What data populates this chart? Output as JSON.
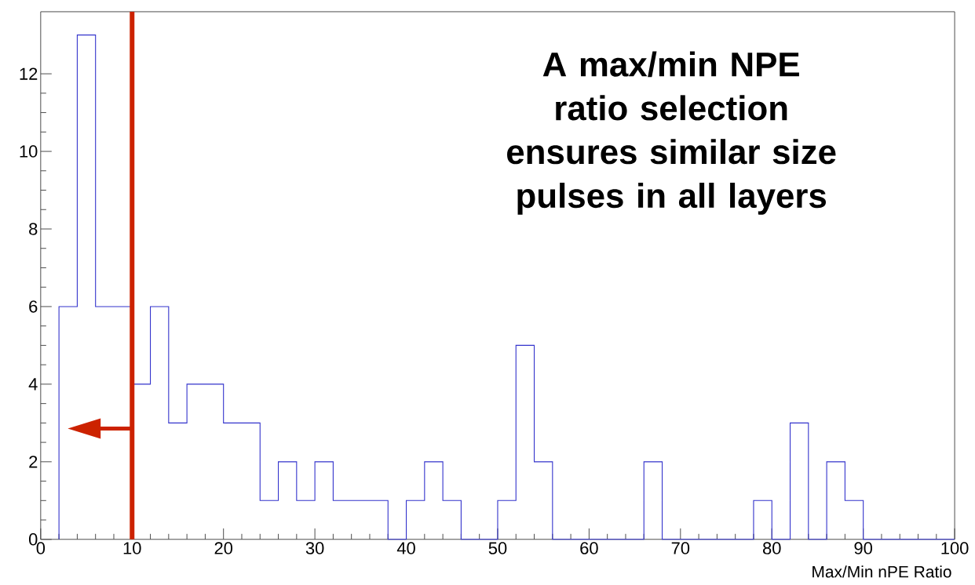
{
  "chart_data": {
    "type": "histogram",
    "xlabel": "Max/Min nPE Ratio",
    "bins": [
      2,
      4,
      6,
      8,
      10,
      12,
      14,
      16,
      18,
      20,
      22,
      24,
      26,
      28,
      30,
      32,
      34,
      36,
      38,
      40,
      42,
      44,
      46,
      48,
      50,
      52,
      54,
      56,
      58,
      60,
      62,
      64,
      66,
      68,
      70,
      72,
      74,
      76,
      78,
      80,
      82,
      84,
      86,
      88,
      90,
      92,
      94,
      96,
      98,
      100
    ],
    "values": [
      6,
      13,
      6,
      6,
      4,
      6,
      3,
      4,
      4,
      3,
      3,
      1,
      2,
      1,
      2,
      1,
      1,
      1,
      0,
      1,
      2,
      1,
      0,
      0,
      1,
      5,
      2,
      0,
      0,
      0,
      0,
      0,
      2,
      0,
      0,
      0,
      0,
      0,
      1,
      0,
      3,
      0,
      2,
      1,
      0,
      0,
      0,
      0,
      0
    ],
    "color": "#3333cc",
    "xlim": [
      0,
      100
    ],
    "ylim": [
      0,
      13.6
    ],
    "xticks": [
      0,
      10,
      20,
      30,
      40,
      50,
      60,
      70,
      80,
      90,
      100
    ],
    "yticks": [
      0,
      2,
      4,
      6,
      8,
      10,
      12
    ],
    "ref_lines": [
      {
        "axis": "x",
        "value": 10,
        "color": "#cc2200"
      }
    ],
    "annotations": [
      "A max/min NPE ratio selection ensures similar size pulses in all layers"
    ],
    "grid": false
  }
}
